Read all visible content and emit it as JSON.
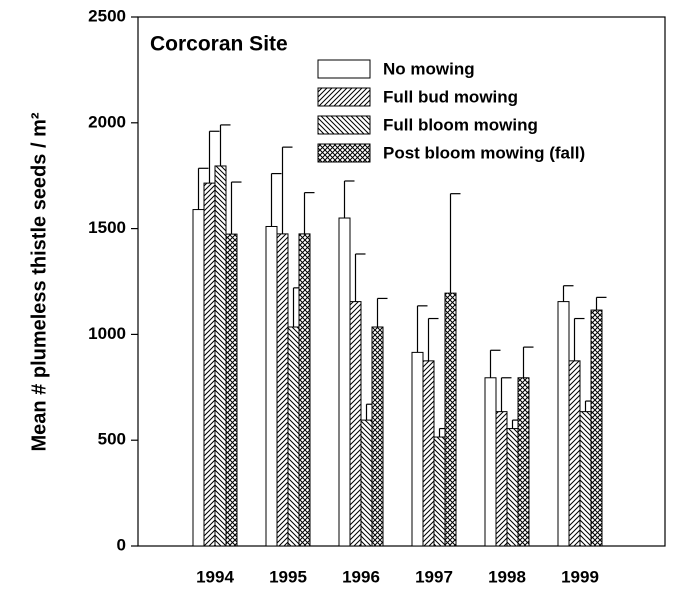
{
  "chart_data": {
    "type": "bar",
    "annotation": "Corcoran Site",
    "y_label": "Mean # plumeless thistle seeds / m²",
    "categories": [
      "1994",
      "1995",
      "1996",
      "1997",
      "1998",
      "1999"
    ],
    "series": [
      {
        "name": "No mowing",
        "color": "#ffffff",
        "pattern": "none",
        "values": [
          1590,
          1510,
          1550,
          915,
          795,
          1155
        ],
        "errors": [
          195,
          250,
          175,
          220,
          130,
          75
        ]
      },
      {
        "name": "Full bud mowing",
        "color": "#ffffff",
        "pattern": "forward",
        "values": [
          1715,
          1475,
          1155,
          875,
          635,
          875
        ],
        "errors": [
          245,
          410,
          225,
          200,
          160,
          200
        ]
      },
      {
        "name": "Full bloom mowing",
        "color": "#ffffff",
        "pattern": "back",
        "values": [
          1796,
          1035,
          595,
          515,
          555,
          635
        ],
        "errors": [
          194,
          185,
          75,
          40,
          40,
          50
        ]
      },
      {
        "name": "Post bloom mowing (fall)",
        "color": "#ffffff",
        "pattern": "cross",
        "values": [
          1474,
          1475,
          1035,
          1195,
          795,
          1115
        ],
        "errors": [
          246,
          195,
          135,
          470,
          145,
          60
        ]
      }
    ],
    "ylim": [
      0,
      2500
    ],
    "yticks": [
      0,
      500,
      1000,
      1500,
      2000,
      2500
    ],
    "legend": "upper right"
  }
}
